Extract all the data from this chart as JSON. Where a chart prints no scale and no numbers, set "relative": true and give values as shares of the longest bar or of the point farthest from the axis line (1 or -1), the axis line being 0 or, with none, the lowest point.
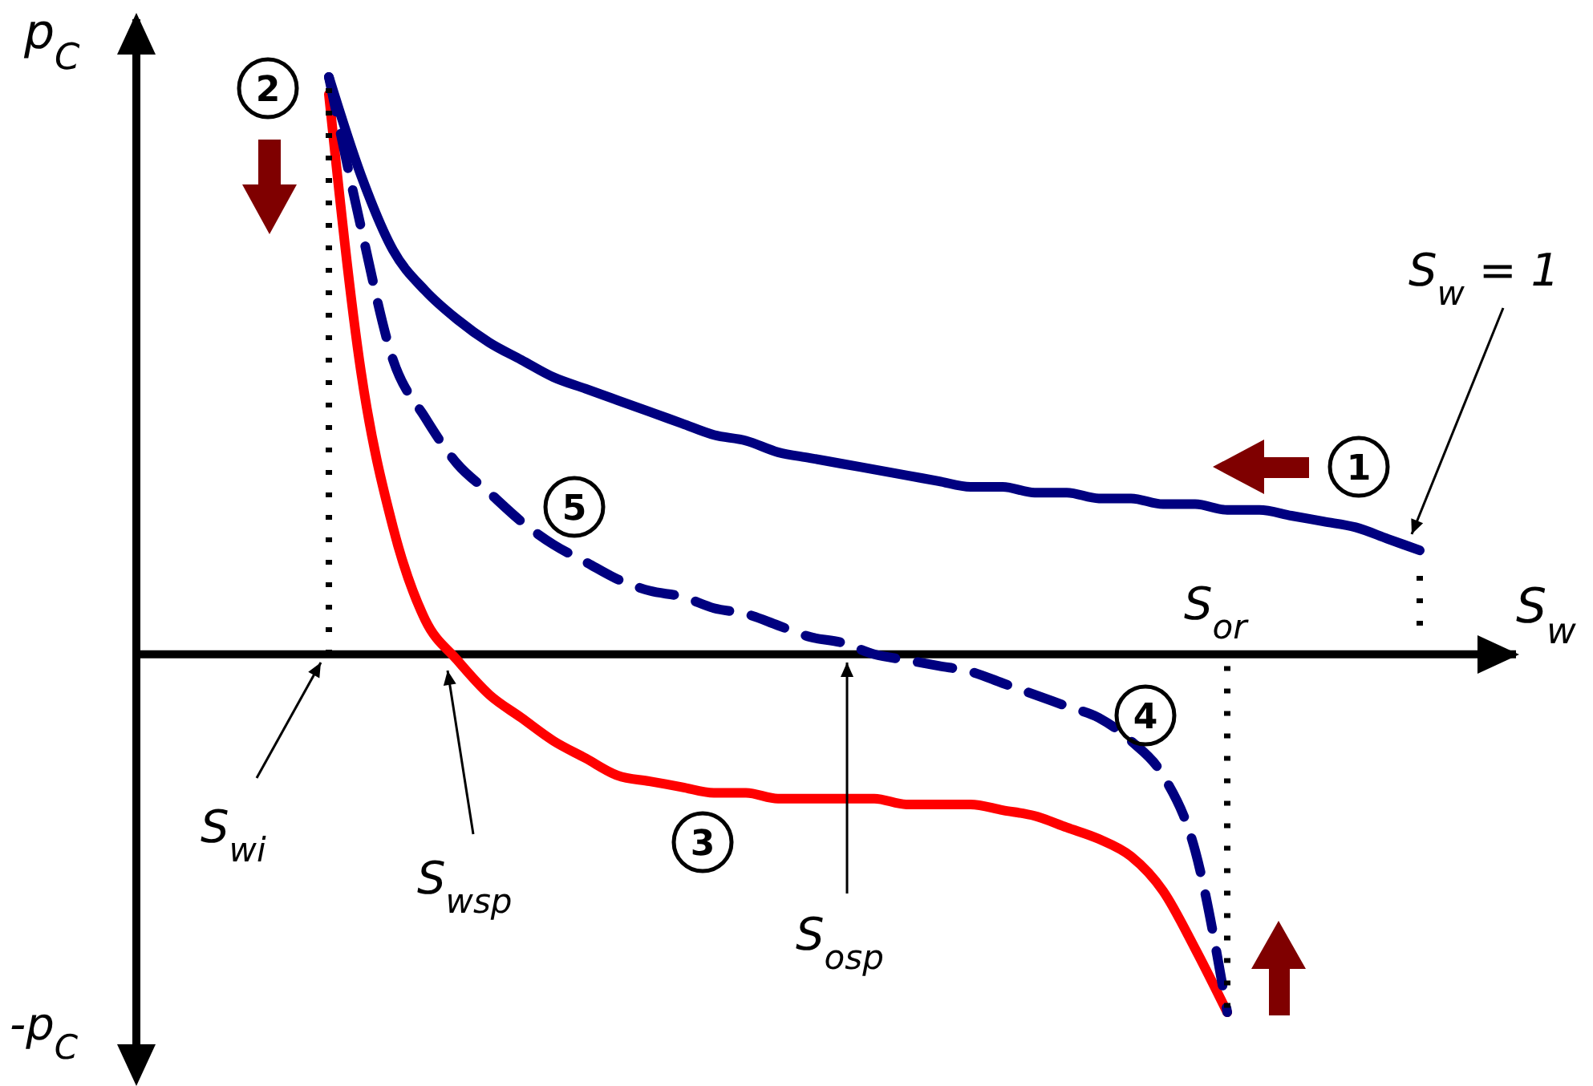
{
  "chart_data": {
    "type": "line",
    "relative": true,
    "ylabel": "p$_{C}$",
    "xlabel": "S$_{w}$",
    "categories": [
      null,
      null,
      null,
      null,
      null,
      null,
      null,
      null,
      null,
      null,
      null,
      null,
      null,
      null,
      null,
      null,
      null,
      null,
      null,
      null,
      null,
      null,
      null,
      null,
      null,
      null,
      null,
      null,
      null,
      null,
      null,
      null,
      null,
      null,
      null,
      null,
      null,
      null,
      null,
      null,
      null,
      null,
      null,
      null
    ],
    "series": [
      {
        "color": "#000080",
        "line_style": "solid",
        "values": [
          null,
          null,
          null,
          null,
          null,
          null,
          1.0,
          0.83,
          0.7,
          0.63,
          0.58,
          0.54,
          0.51,
          0.48,
          0.46,
          0.44,
          0.42,
          0.4,
          0.38,
          0.37,
          0.35,
          0.34,
          0.33,
          0.32,
          0.31,
          0.3,
          0.29,
          0.29,
          0.28,
          0.28,
          0.27,
          0.27,
          0.26,
          0.26,
          0.25,
          0.25,
          0.24,
          0.23,
          0.22,
          0.2,
          0.18,
          null,
          null,
          null
        ]
      },
      {
        "color": "#ff0000",
        "line_style": "solid",
        "values": [
          null,
          null,
          null,
          null,
          null,
          null,
          0.97,
          0.49,
          0.22,
          0.06,
          -0.01,
          -0.07,
          -0.11,
          -0.15,
          -0.18,
          -0.21,
          -0.22,
          -0.23,
          -0.24,
          -0.24,
          -0.25,
          -0.25,
          -0.25,
          -0.25,
          -0.26,
          -0.26,
          -0.26,
          -0.27,
          -0.28,
          -0.3,
          -0.32,
          -0.35,
          -0.41,
          -0.51,
          -0.62,
          null,
          null,
          null,
          null,
          null,
          null,
          null,
          null,
          null
        ]
      },
      {
        "color": "#000080",
        "line_style": "dashed",
        "values": [
          null,
          null,
          null,
          null,
          null,
          null,
          1.0,
          0.74,
          0.51,
          0.41,
          0.33,
          0.28,
          0.23,
          0.19,
          0.16,
          0.13,
          0.11,
          0.1,
          0.08,
          0.07,
          0.05,
          0.03,
          0.02,
          0.0,
          -0.01,
          -0.02,
          -0.03,
          -0.05,
          -0.07,
          -0.09,
          -0.11,
          -0.15,
          -0.21,
          -0.34,
          -0.62,
          null,
          null,
          null,
          null,
          null,
          null,
          null,
          null,
          null
        ]
      }
    ],
    "annotations": [
      "-p$_{C}$",
      "S$_{w}$ = 1",
      "S$_{or}$",
      "S$_{wi}$",
      "S$_{wsp}$",
      "S$_{osp}$",
      "1",
      "2",
      "3",
      "4",
      "5"
    ]
  }
}
